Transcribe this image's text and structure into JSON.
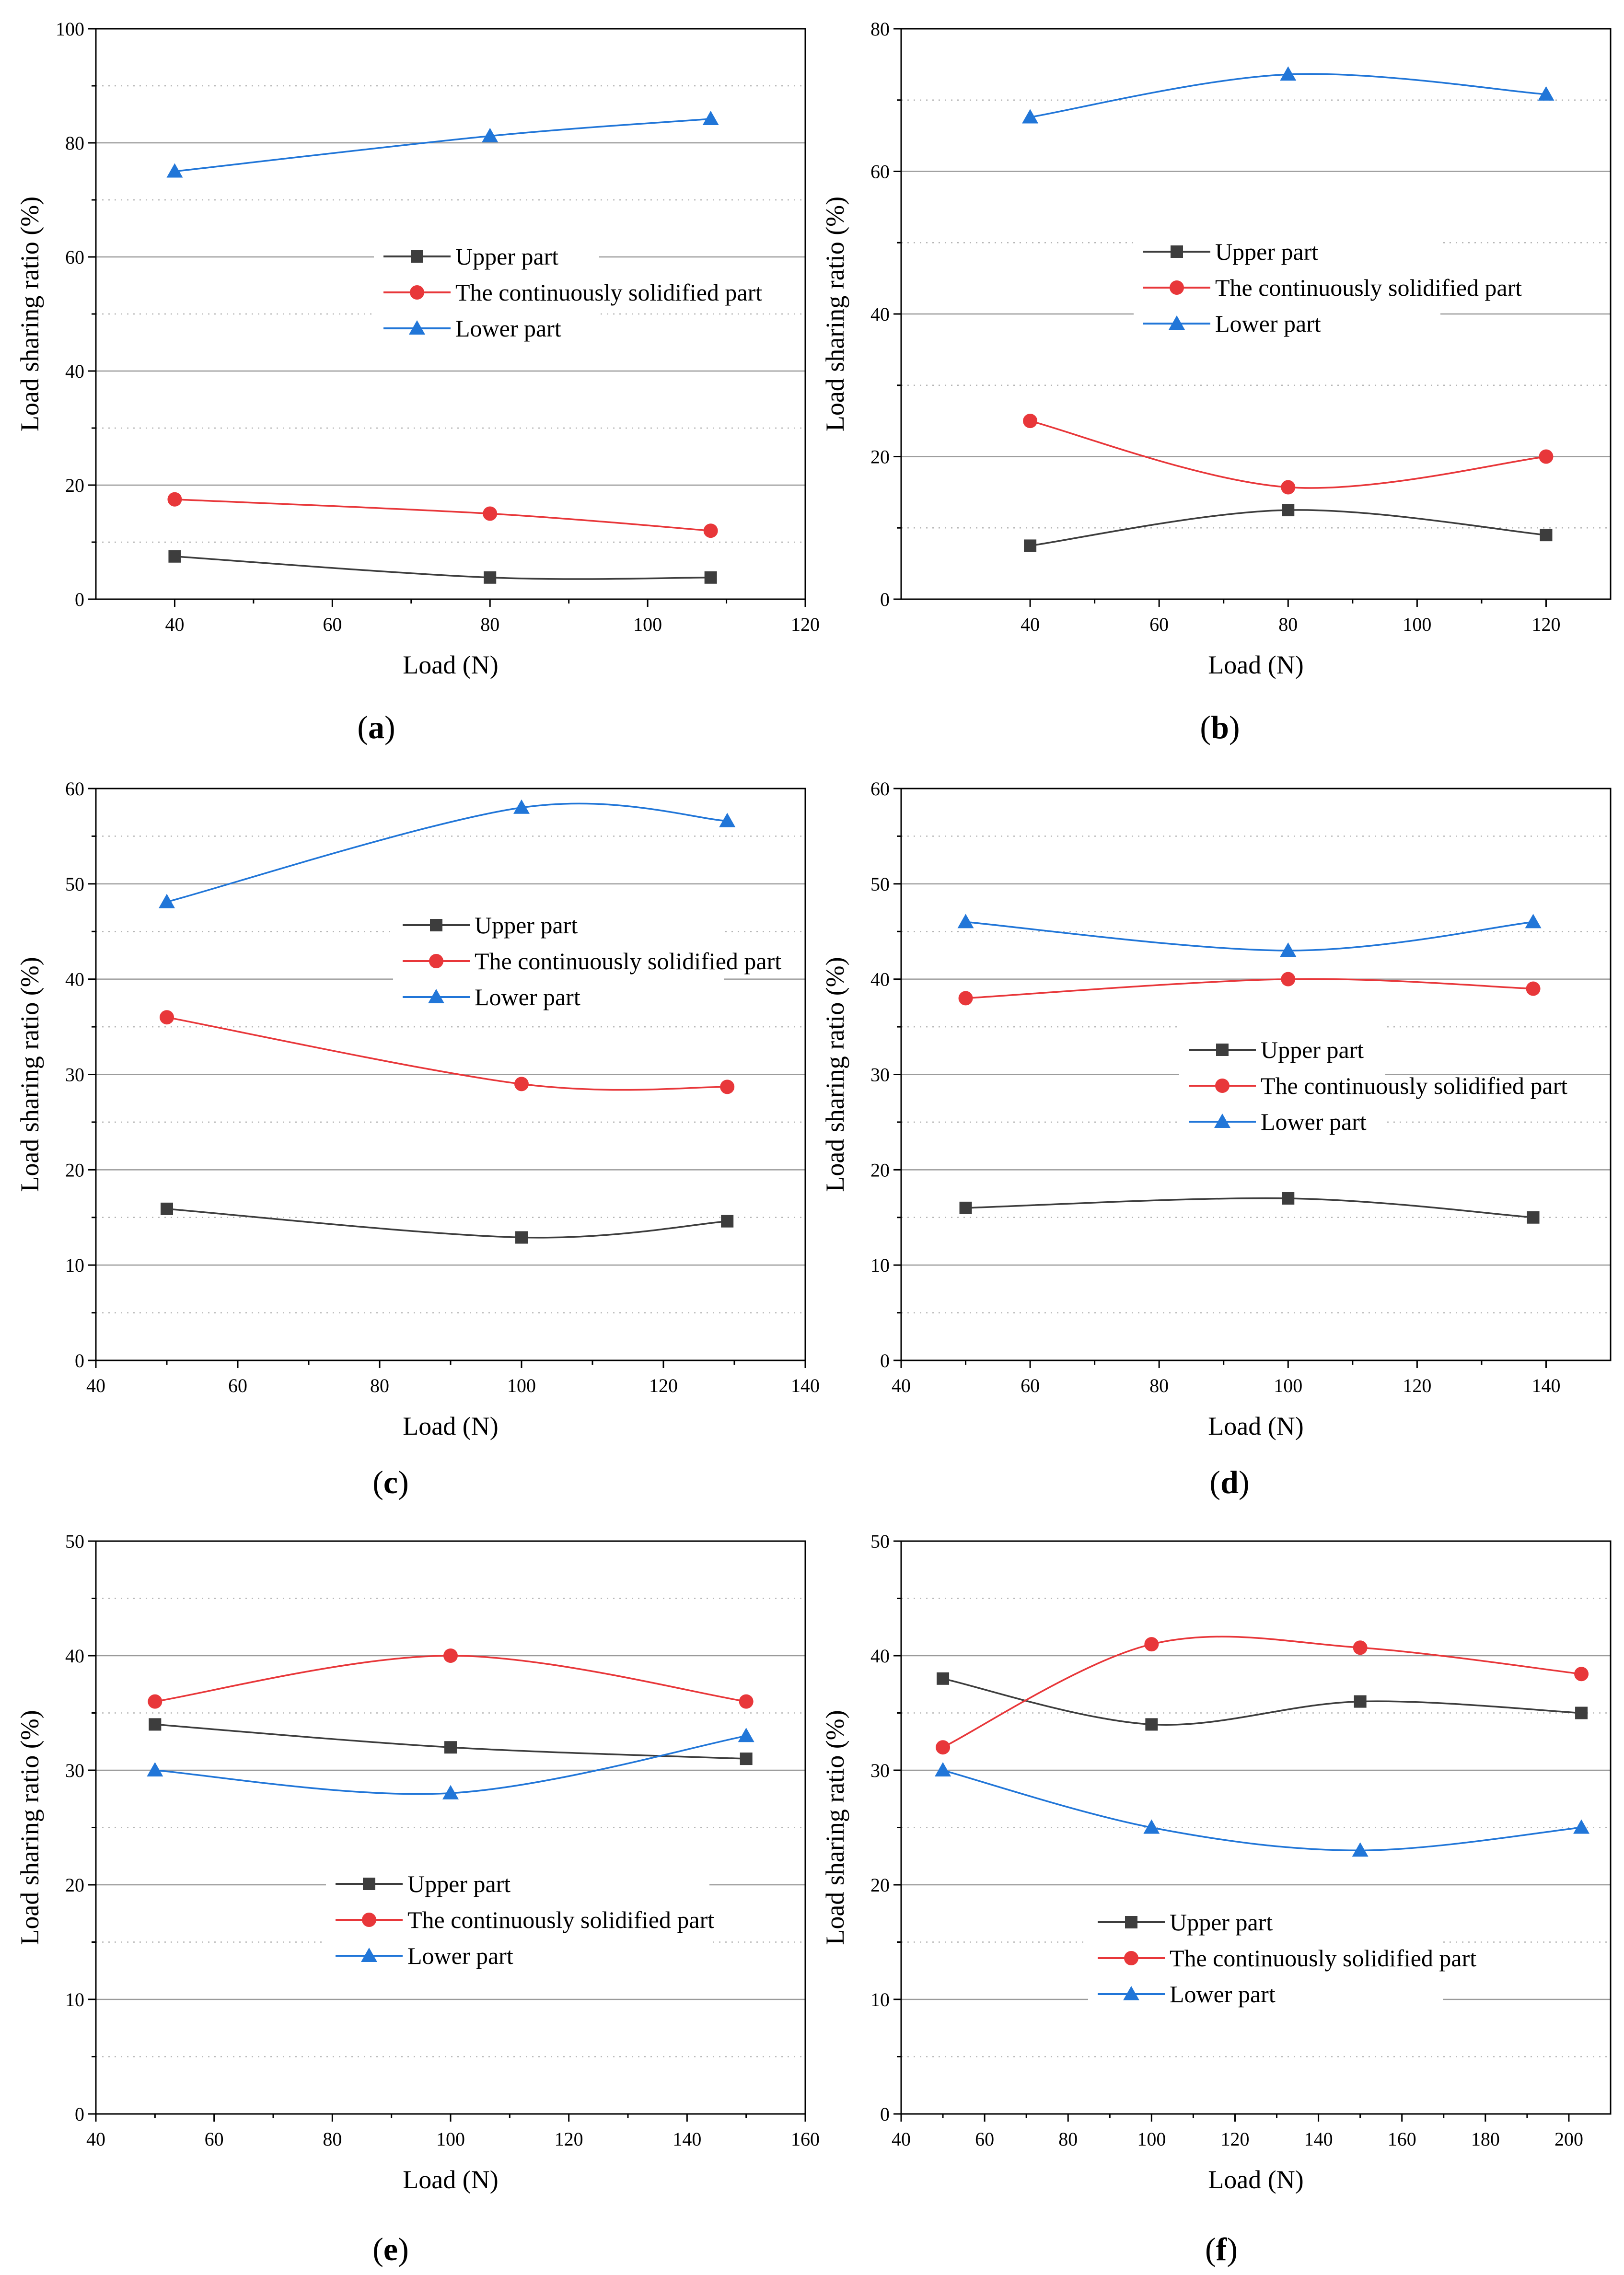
{
  "figure": {
    "caption_labels": [
      "a",
      "b",
      "c",
      "d",
      "e",
      "f"
    ]
  },
  "colors": {
    "upper": "#3d3d3d",
    "continuous": "#e8373a",
    "lower": "#2176d8"
  },
  "chart_data": [
    {
      "type": "line",
      "panel": "a",
      "xlabel": "Load (N)",
      "ylabel": "Load sharing ratio (%)",
      "xlim": [
        30,
        120
      ],
      "xticks": [
        40,
        60,
        80,
        100,
        120
      ],
      "ylim": [
        0,
        100
      ],
      "yticks": [
        0,
        20,
        40,
        60,
        80,
        100
      ],
      "legend_position": "center-right",
      "series": [
        {
          "name": "Upper part",
          "marker": "square",
          "x": [
            40,
            80,
            108
          ],
          "values": [
            7.5,
            3.8,
            3.8
          ]
        },
        {
          "name": "The continuously solidified part",
          "marker": "circle",
          "x": [
            40,
            80,
            108
          ],
          "values": [
            17.5,
            15,
            12
          ]
        },
        {
          "name": "Lower part",
          "marker": "triangle",
          "x": [
            40,
            80,
            108
          ],
          "values": [
            75,
            81.2,
            84.2
          ]
        }
      ]
    },
    {
      "type": "line",
      "panel": "b",
      "xlabel": "Load (N)",
      "ylabel": "Load sharing ratio (%)",
      "xlim": [
        20,
        130
      ],
      "xticks": [
        40,
        60,
        80,
        100,
        120
      ],
      "ylim": [
        0,
        80
      ],
      "yticks": [
        0,
        20,
        40,
        60,
        80
      ],
      "legend_position": "center-right",
      "series": [
        {
          "name": "Upper part",
          "marker": "square",
          "x": [
            40,
            80,
            120
          ],
          "values": [
            7.5,
            12.5,
            9
          ]
        },
        {
          "name": "The continuously solidified part",
          "marker": "circle",
          "x": [
            40,
            80,
            120
          ],
          "values": [
            25,
            15.7,
            20
          ]
        },
        {
          "name": "Lower part",
          "marker": "triangle",
          "x": [
            40,
            80,
            120
          ],
          "values": [
            67.6,
            73.6,
            70.8
          ]
        }
      ]
    },
    {
      "type": "line",
      "panel": "c",
      "xlabel": "Load (N)",
      "ylabel": "Load sharing ratio (%)",
      "xlim": [
        40,
        140
      ],
      "xticks": [
        40,
        60,
        80,
        100,
        120,
        140
      ],
      "ylim": [
        0,
        60
      ],
      "yticks": [
        0,
        10,
        20,
        30,
        40,
        50,
        60
      ],
      "legend_position": "center-right",
      "series": [
        {
          "name": "Upper part",
          "marker": "square",
          "x": [
            50,
            100,
            129
          ],
          "values": [
            15.9,
            12.9,
            14.6
          ]
        },
        {
          "name": "The continuously solidified part",
          "marker": "circle",
          "x": [
            50,
            100,
            129
          ],
          "values": [
            36,
            29,
            28.7
          ]
        },
        {
          "name": "Lower part",
          "marker": "triangle",
          "x": [
            50,
            100,
            129
          ],
          "values": [
            48.1,
            58,
            56.6
          ]
        }
      ]
    },
    {
      "type": "line",
      "panel": "d",
      "xlabel": "Load (N)",
      "ylabel": "Load sharing ratio (%)",
      "xlim": [
        40,
        150
      ],
      "xticks": [
        40,
        60,
        80,
        100,
        120,
        140
      ],
      "ylim": [
        0,
        60
      ],
      "yticks": [
        0,
        10,
        20,
        30,
        40,
        50,
        60
      ],
      "legend_position": "center-right",
      "series": [
        {
          "name": "Upper part",
          "marker": "square",
          "x": [
            50,
            100,
            138
          ],
          "values": [
            16,
            17,
            15
          ]
        },
        {
          "name": "The continuously solidified part",
          "marker": "circle",
          "x": [
            50,
            100,
            138
          ],
          "values": [
            38,
            40,
            39
          ]
        },
        {
          "name": "Lower part",
          "marker": "triangle",
          "x": [
            50,
            100,
            138
          ],
          "values": [
            46,
            43,
            46
          ]
        }
      ]
    },
    {
      "type": "line",
      "panel": "e",
      "xlabel": "Load (N)",
      "ylabel": "Load sharing ratio (%)",
      "xlim": [
        40,
        160
      ],
      "xticks": [
        40,
        60,
        80,
        100,
        120,
        140,
        160
      ],
      "ylim": [
        0,
        50
      ],
      "yticks": [
        0,
        10,
        20,
        30,
        40,
        50
      ],
      "legend_position": "lower-center",
      "series": [
        {
          "name": "Upper part",
          "marker": "square",
          "x": [
            50,
            100,
            150
          ],
          "values": [
            34,
            32,
            31
          ]
        },
        {
          "name": "The continuously solidified part",
          "marker": "circle",
          "x": [
            50,
            100,
            150
          ],
          "values": [
            36,
            40,
            36
          ]
        },
        {
          "name": "Lower part",
          "marker": "triangle",
          "x": [
            50,
            100,
            150
          ],
          "values": [
            30,
            28,
            33
          ]
        }
      ]
    },
    {
      "type": "line",
      "panel": "f",
      "xlabel": "Load (N)",
      "ylabel": "Load sharing ratio (%)",
      "xlim": [
        40,
        210
      ],
      "xticks": [
        40,
        60,
        80,
        100,
        120,
        140,
        160,
        180,
        200
      ],
      "ylim": [
        0,
        50
      ],
      "yticks": [
        0,
        10,
        20,
        30,
        40,
        50
      ],
      "legend_position": "lower-center",
      "series": [
        {
          "name": "Upper part",
          "marker": "square",
          "x": [
            50,
            100,
            150,
            203
          ],
          "values": [
            38,
            34,
            36,
            35
          ]
        },
        {
          "name": "The continuously solidified part",
          "marker": "circle",
          "x": [
            50,
            100,
            150,
            203
          ],
          "values": [
            32,
            41,
            40.7,
            38.4
          ]
        },
        {
          "name": "Lower part",
          "marker": "triangle",
          "x": [
            50,
            100,
            150,
            203
          ],
          "values": [
            30,
            25,
            23,
            25
          ]
        }
      ]
    }
  ]
}
